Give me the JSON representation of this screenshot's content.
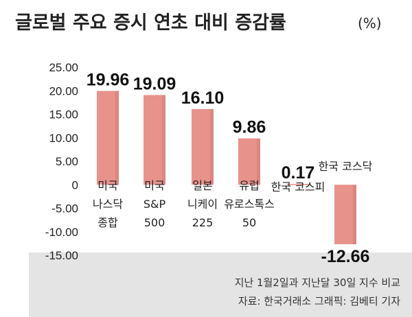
{
  "title": "글로벌 주요 증시 연초 대비 증감률",
  "unit": "(%)",
  "chart_data": {
    "type": "bar",
    "title": "글로벌 주요 증시 연초 대비 증감률",
    "unit": "(%)",
    "categories": [
      [
        "미국",
        "나스닥",
        "종합"
      ],
      [
        "미국",
        "S&P",
        "500"
      ],
      [
        "일본",
        "니케이",
        "225"
      ],
      [
        "유럽",
        "유로스톡스",
        "50"
      ],
      [
        "한국 코스피"
      ],
      [
        "한국 코스닥"
      ]
    ],
    "values": [
      19.96,
      19.09,
      16.1,
      9.86,
      0.17,
      -12.66
    ],
    "value_labels": [
      "19.96",
      "19.09",
      "16.10",
      "9.86",
      "0.17",
      "-12.66"
    ],
    "y_ticks": [
      "25.00",
      "20.00",
      "15.00",
      "10.00",
      "5.00",
      "0",
      "-5.00",
      "-10.00",
      "-15.00"
    ],
    "ylim": [
      -15,
      25
    ],
    "grid": false,
    "bar_color": "#e8928c",
    "bar_color_dark": "#c9706a",
    "bottom_band_color": "#e4e4e4"
  },
  "footnotes": {
    "period": "지난 1월2일과 지난달 30일 지수 비교",
    "source": "자료: 한국거래소   그래픽: 김베티 기자"
  }
}
